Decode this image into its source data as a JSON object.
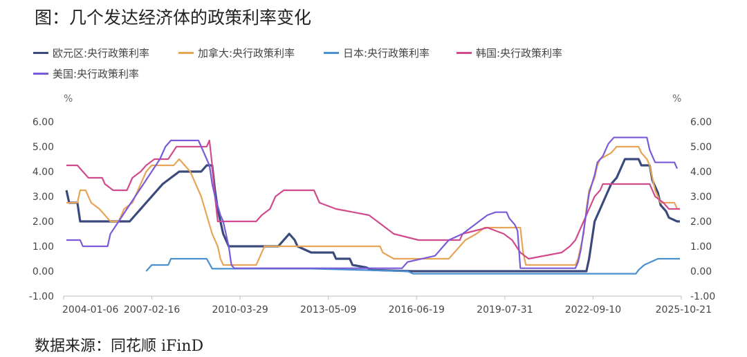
{
  "title": "图：几个发达经济体的政策利率变化",
  "source": "数据来源：同花顺 iFinD",
  "chart_data": {
    "type": "line",
    "y_unit_left": "%",
    "y_unit_right": "%",
    "ylim": [
      -1.0,
      6.0
    ],
    "y_ticks": [
      "6.00",
      "5.00",
      "4.00",
      "3.00",
      "2.00",
      "1.00",
      "0.00",
      "-1.00"
    ],
    "x_ticks": [
      "2004-01-06",
      "2007-02-16",
      "2010-03-29",
      "2013-05-09",
      "2016-06-19",
      "2019-07-31",
      "2022-09-10",
      "2025-10-21"
    ],
    "legend_position": "top-left",
    "series": [
      {
        "name": "欧元区:央行政策利率",
        "color": "#3a4a7c",
        "points": [
          [
            2003.6,
            3.25
          ],
          [
            2003.7,
            2.75
          ],
          [
            2004.0,
            2.75
          ],
          [
            2004.1,
            2.0
          ],
          [
            2005.9,
            2.0
          ],
          [
            2006.1,
            2.25
          ],
          [
            2006.3,
            2.5
          ],
          [
            2006.5,
            2.75
          ],
          [
            2006.7,
            3.0
          ],
          [
            2006.9,
            3.25
          ],
          [
            2007.1,
            3.5
          ],
          [
            2007.4,
            3.75
          ],
          [
            2007.7,
            4.0
          ],
          [
            2008.5,
            4.0
          ],
          [
            2008.7,
            4.25
          ],
          [
            2008.9,
            4.25
          ],
          [
            2009.0,
            3.25
          ],
          [
            2009.1,
            2.5
          ],
          [
            2009.2,
            2.0
          ],
          [
            2009.3,
            1.5
          ],
          [
            2009.4,
            1.25
          ],
          [
            2009.5,
            1.0
          ],
          [
            2011.3,
            1.0
          ],
          [
            2011.5,
            1.25
          ],
          [
            2011.7,
            1.5
          ],
          [
            2011.9,
            1.25
          ],
          [
            2012.0,
            1.0
          ],
          [
            2012.5,
            0.75
          ],
          [
            2013.3,
            0.75
          ],
          [
            2013.4,
            0.5
          ],
          [
            2013.9,
            0.5
          ],
          [
            2014.0,
            0.25
          ],
          [
            2014.5,
            0.15
          ],
          [
            2014.7,
            0.05
          ],
          [
            2016.2,
            0.0
          ],
          [
            2022.5,
            0.0
          ],
          [
            2022.6,
            0.5
          ],
          [
            2022.7,
            1.25
          ],
          [
            2022.8,
            2.0
          ],
          [
            2023.0,
            2.5
          ],
          [
            2023.2,
            3.0
          ],
          [
            2023.4,
            3.5
          ],
          [
            2023.6,
            3.75
          ],
          [
            2023.7,
            4.0
          ],
          [
            2023.8,
            4.25
          ],
          [
            2023.9,
            4.5
          ],
          [
            2024.4,
            4.5
          ],
          [
            2024.5,
            4.25
          ],
          [
            2024.8,
            4.25
          ],
          [
            2024.9,
            3.65
          ],
          [
            2025.0,
            3.4
          ],
          [
            2025.1,
            3.15
          ],
          [
            2025.2,
            2.65
          ],
          [
            2025.4,
            2.4
          ],
          [
            2025.5,
            2.15
          ],
          [
            2025.8,
            2.0
          ],
          [
            2025.9,
            2.0
          ]
        ]
      },
      {
        "name": "加拿大:央行政策利率",
        "color": "#e8a456",
        "points": [
          [
            2003.6,
            2.75
          ],
          [
            2004.0,
            2.75
          ],
          [
            2004.1,
            3.25
          ],
          [
            2004.3,
            3.25
          ],
          [
            2004.5,
            2.75
          ],
          [
            2004.8,
            2.5
          ],
          [
            2005.0,
            2.25
          ],
          [
            2005.2,
            2.0
          ],
          [
            2005.5,
            2.0
          ],
          [
            2005.7,
            2.5
          ],
          [
            2006.0,
            2.75
          ],
          [
            2006.3,
            3.5
          ],
          [
            2006.5,
            4.0
          ],
          [
            2006.7,
            4.25
          ],
          [
            2007.5,
            4.25
          ],
          [
            2007.7,
            4.5
          ],
          [
            2007.9,
            4.25
          ],
          [
            2008.1,
            4.0
          ],
          [
            2008.3,
            3.5
          ],
          [
            2008.5,
            3.0
          ],
          [
            2008.7,
            2.25
          ],
          [
            2008.9,
            1.5
          ],
          [
            2009.1,
            1.0
          ],
          [
            2009.2,
            0.5
          ],
          [
            2009.3,
            0.25
          ],
          [
            2010.5,
            0.25
          ],
          [
            2010.6,
            0.5
          ],
          [
            2010.7,
            0.75
          ],
          [
            2010.8,
            1.0
          ],
          [
            2015.0,
            1.0
          ],
          [
            2015.1,
            0.75
          ],
          [
            2015.5,
            0.5
          ],
          [
            2017.5,
            0.5
          ],
          [
            2017.7,
            0.75
          ],
          [
            2017.9,
            1.0
          ],
          [
            2018.1,
            1.25
          ],
          [
            2018.5,
            1.5
          ],
          [
            2018.8,
            1.75
          ],
          [
            2020.1,
            1.75
          ],
          [
            2020.2,
            0.75
          ],
          [
            2020.3,
            0.25
          ],
          [
            2022.1,
            0.25
          ],
          [
            2022.2,
            0.5
          ],
          [
            2022.3,
            1.0
          ],
          [
            2022.4,
            1.5
          ],
          [
            2022.5,
            2.5
          ],
          [
            2022.6,
            3.25
          ],
          [
            2022.8,
            3.75
          ],
          [
            2022.9,
            4.25
          ],
          [
            2023.0,
            4.5
          ],
          [
            2023.4,
            4.75
          ],
          [
            2023.6,
            5.0
          ],
          [
            2024.4,
            5.0
          ],
          [
            2024.5,
            4.75
          ],
          [
            2024.7,
            4.5
          ],
          [
            2024.8,
            4.25
          ],
          [
            2024.9,
            3.75
          ],
          [
            2025.0,
            3.25
          ],
          [
            2025.1,
            3.0
          ],
          [
            2025.2,
            2.75
          ],
          [
            2025.7,
            2.75
          ],
          [
            2025.8,
            2.5
          ],
          [
            2025.9,
            2.5
          ]
        ]
      },
      {
        "name": "日本:央行政策利率",
        "color": "#4a8fd0",
        "points": [
          [
            2006.5,
            0.0
          ],
          [
            2006.7,
            0.25
          ],
          [
            2007.3,
            0.25
          ],
          [
            2007.4,
            0.5
          ],
          [
            2008.7,
            0.5
          ],
          [
            2008.9,
            0.1
          ],
          [
            2012.5,
            0.1
          ],
          [
            2016.0,
            0.0
          ],
          [
            2016.2,
            -0.1
          ],
          [
            2024.3,
            -0.1
          ],
          [
            2024.4,
            0.05
          ],
          [
            2024.6,
            0.25
          ],
          [
            2025.1,
            0.5
          ],
          [
            2025.9,
            0.5
          ]
        ]
      },
      {
        "name": "韩国:央行政策利率",
        "color": "#d04a8c",
        "points": [
          [
            2003.6,
            4.25
          ],
          [
            2004.0,
            4.25
          ],
          [
            2004.2,
            4.0
          ],
          [
            2004.4,
            3.75
          ],
          [
            2004.9,
            3.75
          ],
          [
            2005.0,
            3.5
          ],
          [
            2005.3,
            3.25
          ],
          [
            2005.8,
            3.25
          ],
          [
            2006.0,
            3.75
          ],
          [
            2006.3,
            4.0
          ],
          [
            2006.5,
            4.25
          ],
          [
            2006.8,
            4.5
          ],
          [
            2007.3,
            4.5
          ],
          [
            2007.6,
            5.0
          ],
          [
            2008.7,
            5.0
          ],
          [
            2008.8,
            5.25
          ],
          [
            2008.9,
            4.25
          ],
          [
            2009.0,
            3.0
          ],
          [
            2009.1,
            2.0
          ],
          [
            2010.5,
            2.0
          ],
          [
            2010.7,
            2.25
          ],
          [
            2011.0,
            2.5
          ],
          [
            2011.2,
            3.0
          ],
          [
            2011.5,
            3.25
          ],
          [
            2012.6,
            3.25
          ],
          [
            2012.8,
            2.75
          ],
          [
            2013.4,
            2.5
          ],
          [
            2014.6,
            2.25
          ],
          [
            2014.9,
            2.0
          ],
          [
            2015.2,
            1.75
          ],
          [
            2015.5,
            1.5
          ],
          [
            2016.4,
            1.25
          ],
          [
            2017.9,
            1.25
          ],
          [
            2018.0,
            1.5
          ],
          [
            2018.9,
            1.75
          ],
          [
            2019.5,
            1.5
          ],
          [
            2019.8,
            1.25
          ],
          [
            2020.1,
            0.75
          ],
          [
            2020.4,
            0.5
          ],
          [
            2021.6,
            0.75
          ],
          [
            2021.9,
            1.0
          ],
          [
            2022.1,
            1.25
          ],
          [
            2022.3,
            1.75
          ],
          [
            2022.5,
            2.25
          ],
          [
            2022.6,
            2.5
          ],
          [
            2022.8,
            3.0
          ],
          [
            2023.0,
            3.25
          ],
          [
            2023.1,
            3.5
          ],
          [
            2024.8,
            3.5
          ],
          [
            2024.9,
            3.25
          ],
          [
            2025.0,
            3.0
          ],
          [
            2025.3,
            2.75
          ],
          [
            2025.5,
            2.5
          ],
          [
            2025.9,
            2.5
          ]
        ]
      },
      {
        "name": "美国:央行政策利率",
        "color": "#7a5ad8",
        "points": [
          [
            2003.6,
            1.25
          ],
          [
            2004.1,
            1.25
          ],
          [
            2004.2,
            1.0
          ],
          [
            2005.1,
            1.0
          ],
          [
            2005.2,
            1.5
          ],
          [
            2005.5,
            2.0
          ],
          [
            2005.8,
            2.5
          ],
          [
            2006.1,
            3.0
          ],
          [
            2006.4,
            3.5
          ],
          [
            2006.7,
            4.0
          ],
          [
            2007.0,
            4.5
          ],
          [
            2007.2,
            5.0
          ],
          [
            2007.4,
            5.25
          ],
          [
            2008.4,
            5.25
          ],
          [
            2008.6,
            4.75
          ],
          [
            2008.8,
            4.25
          ],
          [
            2008.9,
            3.5
          ],
          [
            2009.0,
            3.0
          ],
          [
            2009.2,
            2.25
          ],
          [
            2009.3,
            2.0
          ],
          [
            2009.5,
            1.0
          ],
          [
            2009.6,
            0.25
          ],
          [
            2009.7,
            0.12
          ],
          [
            2015.8,
            0.12
          ],
          [
            2016.0,
            0.37
          ],
          [
            2017.0,
            0.62
          ],
          [
            2017.3,
            1.0
          ],
          [
            2017.5,
            1.25
          ],
          [
            2018.0,
            1.5
          ],
          [
            2018.3,
            1.75
          ],
          [
            2018.6,
            2.0
          ],
          [
            2018.9,
            2.25
          ],
          [
            2019.2,
            2.37
          ],
          [
            2019.6,
            2.37
          ],
          [
            2019.7,
            2.12
          ],
          [
            2019.9,
            1.87
          ],
          [
            2020.0,
            1.62
          ],
          [
            2020.1,
            0.12
          ],
          [
            2022.1,
            0.12
          ],
          [
            2022.2,
            0.37
          ],
          [
            2022.3,
            0.87
          ],
          [
            2022.4,
            1.62
          ],
          [
            2022.5,
            2.37
          ],
          [
            2022.6,
            3.12
          ],
          [
            2022.8,
            3.87
          ],
          [
            2022.9,
            4.37
          ],
          [
            2023.1,
            4.62
          ],
          [
            2023.2,
            4.87
          ],
          [
            2023.3,
            5.12
          ],
          [
            2023.5,
            5.37
          ],
          [
            2024.7,
            5.37
          ],
          [
            2024.8,
            4.87
          ],
          [
            2024.9,
            4.62
          ],
          [
            2025.0,
            4.37
          ],
          [
            2025.7,
            4.37
          ],
          [
            2025.8,
            4.12
          ]
        ]
      }
    ]
  }
}
